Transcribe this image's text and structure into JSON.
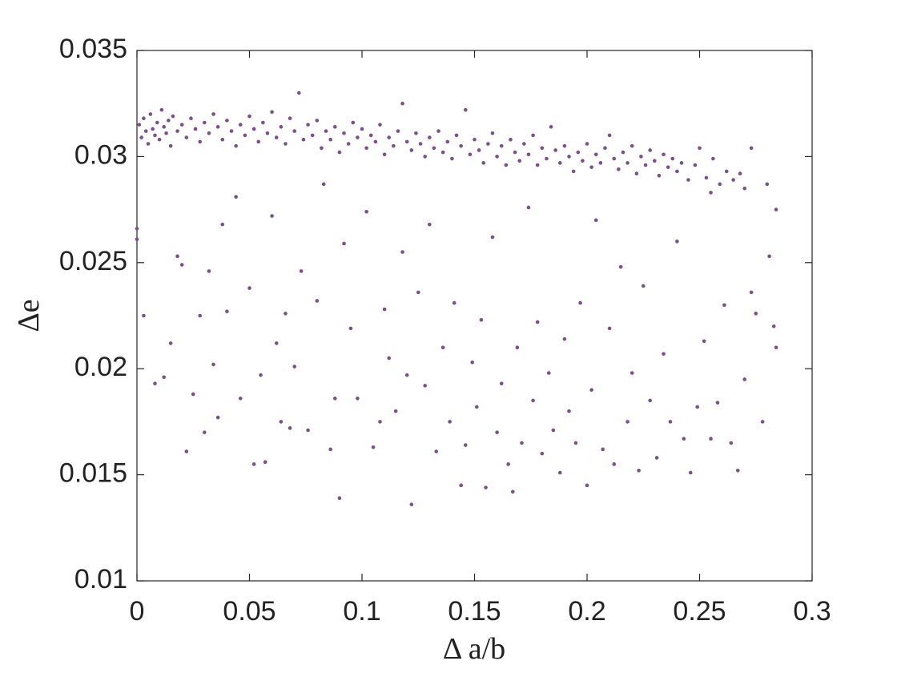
{
  "chart_data": {
    "type": "scatter",
    "xlabel": "Δ a/b",
    "ylabel": "Δe",
    "color": "#7e4e8c",
    "xlim": [
      0,
      0.3
    ],
    "ylim": [
      0.01,
      0.035
    ],
    "xticks": [
      0,
      0.05,
      0.1,
      0.15,
      0.2,
      0.25,
      0.3
    ],
    "yticks": [
      0.01,
      0.015,
      0.02,
      0.025,
      0.03,
      0.035
    ],
    "x": [
      0.001,
      0.002,
      0.003,
      0.004,
      0.005,
      0.006,
      0.007,
      0.008,
      0.009,
      0.01,
      0.011,
      0.012,
      0.013,
      0.014,
      0.015,
      0.016,
      0.018,
      0.02,
      0.022,
      0.024,
      0.026,
      0.028,
      0.03,
      0.032,
      0.034,
      0.036,
      0.038,
      0.04,
      0.042,
      0.044,
      0.046,
      0.048,
      0.05,
      0.052,
      0.054,
      0.056,
      0.058,
      0.06,
      0.062,
      0.064,
      0.066,
      0.068,
      0.07,
      0.072,
      0.074,
      0.076,
      0.078,
      0.08,
      0.082,
      0.084,
      0.086,
      0.088,
      0.09,
      0.092,
      0.094,
      0.096,
      0.098,
      0.1,
      0.102,
      0.104,
      0.106,
      0.108,
      0.11,
      0.112,
      0.114,
      0.116,
      0.118,
      0.12,
      0.122,
      0.124,
      0.126,
      0.128,
      0.13,
      0.132,
      0.134,
      0.136,
      0.138,
      0.14,
      0.142,
      0.144,
      0.146,
      0.148,
      0.15,
      0.152,
      0.154,
      0.156,
      0.158,
      0.16,
      0.162,
      0.164,
      0.166,
      0.168,
      0.17,
      0.172,
      0.174,
      0.176,
      0.178,
      0.18,
      0.182,
      0.184,
      0.186,
      0.188,
      0.19,
      0.192,
      0.194,
      0.196,
      0.198,
      0.2,
      0.202,
      0.204,
      0.206,
      0.208,
      0.21,
      0.212,
      0.214,
      0.216,
      0.218,
      0.22,
      0.222,
      0.224,
      0.226,
      0.228,
      0.23,
      0.232,
      0.234,
      0.236,
      0.238,
      0.24,
      0.242,
      0.245,
      0.248,
      0.25,
      0.253,
      0.256,
      0.259,
      0.262,
      0.265,
      0.268,
      0.27,
      0.273,
      0.255,
      0.28,
      0.0,
      0.0,
      0.003,
      0.008,
      0.012,
      0.015,
      0.018,
      0.02,
      0.022,
      0.025,
      0.028,
      0.03,
      0.032,
      0.034,
      0.036,
      0.038,
      0.04,
      0.044,
      0.046,
      0.05,
      0.052,
      0.055,
      0.057,
      0.06,
      0.062,
      0.064,
      0.066,
      0.068,
      0.07,
      0.073,
      0.076,
      0.08,
      0.083,
      0.086,
      0.088,
      0.09,
      0.092,
      0.095,
      0.098,
      0.102,
      0.105,
      0.108,
      0.11,
      0.112,
      0.115,
      0.118,
      0.12,
      0.122,
      0.125,
      0.128,
      0.13,
      0.133,
      0.136,
      0.139,
      0.141,
      0.144,
      0.146,
      0.149,
      0.151,
      0.153,
      0.155,
      0.158,
      0.16,
      0.162,
      0.165,
      0.167,
      0.169,
      0.171,
      0.174,
      0.176,
      0.178,
      0.18,
      0.183,
      0.185,
      0.188,
      0.19,
      0.192,
      0.195,
      0.197,
      0.2,
      0.202,
      0.204,
      0.207,
      0.21,
      0.212,
      0.215,
      0.218,
      0.22,
      0.223,
      0.225,
      0.228,
      0.231,
      0.234,
      0.237,
      0.24,
      0.243,
      0.246,
      0.249,
      0.252,
      0.255,
      0.258,
      0.261,
      0.264,
      0.267,
      0.27,
      0.273,
      0.275,
      0.278,
      0.281,
      0.283,
      0.284,
      0.284
    ],
    "values": [
      0.0315,
      0.0309,
      0.0318,
      0.0312,
      0.0306,
      0.032,
      0.0313,
      0.031,
      0.0316,
      0.0308,
      0.0322,
      0.0314,
      0.0311,
      0.0317,
      0.0305,
      0.0319,
      0.0312,
      0.0315,
      0.0309,
      0.0318,
      0.0313,
      0.0307,
      0.0316,
      0.0311,
      0.032,
      0.0314,
      0.0308,
      0.0317,
      0.0312,
      0.0305,
      0.0315,
      0.031,
      0.0319,
      0.0313,
      0.0307,
      0.0316,
      0.0311,
      0.0321,
      0.0309,
      0.0314,
      0.0306,
      0.0318,
      0.0312,
      0.033,
      0.0308,
      0.0315,
      0.031,
      0.0317,
      0.0304,
      0.0312,
      0.0308,
      0.0314,
      0.0302,
      0.0311,
      0.0306,
      0.0316,
      0.0309,
      0.0313,
      0.0304,
      0.031,
      0.0307,
      0.0315,
      0.0301,
      0.0309,
      0.0305,
      0.0312,
      0.0325,
      0.0307,
      0.0303,
      0.0311,
      0.0306,
      0.03,
      0.0309,
      0.0304,
      0.0312,
      0.0302,
      0.0307,
      0.0299,
      0.031,
      0.0305,
      0.0322,
      0.0301,
      0.0308,
      0.0303,
      0.0297,
      0.0306,
      0.0311,
      0.03,
      0.0305,
      0.0296,
      0.0308,
      0.0302,
      0.0298,
      0.0306,
      0.0301,
      0.031,
      0.0296,
      0.0304,
      0.0299,
      0.0314,
      0.0303,
      0.0297,
      0.0305,
      0.03,
      0.0293,
      0.0302,
      0.0298,
      0.0306,
      0.0295,
      0.0301,
      0.0297,
      0.0304,
      0.031,
      0.0299,
      0.0294,
      0.0302,
      0.0297,
      0.0305,
      0.0292,
      0.03,
      0.0296,
      0.0303,
      0.0298,
      0.0291,
      0.0301,
      0.0295,
      0.0299,
      0.0293,
      0.0297,
      0.0289,
      0.0296,
      0.0304,
      0.029,
      0.0299,
      0.0287,
      0.0293,
      0.0289,
      0.0292,
      0.0285,
      0.0304,
      0.0283,
      0.0287,
      0.0266,
      0.0261,
      0.0225,
      0.0193,
      0.0196,
      0.0212,
      0.0253,
      0.0249,
      0.0161,
      0.0188,
      0.0225,
      0.017,
      0.0246,
      0.0202,
      0.0177,
      0.0268,
      0.0227,
      0.0281,
      0.0186,
      0.0238,
      0.0155,
      0.0197,
      0.0156,
      0.0272,
      0.0212,
      0.0175,
      0.0226,
      0.0172,
      0.0201,
      0.0246,
      0.0171,
      0.0232,
      0.0287,
      0.0162,
      0.0186,
      0.0139,
      0.0259,
      0.0219,
      0.0186,
      0.0274,
      0.0163,
      0.0175,
      0.0228,
      0.0205,
      0.018,
      0.0255,
      0.0197,
      0.0136,
      0.0236,
      0.0192,
      0.0268,
      0.0161,
      0.021,
      0.0175,
      0.0231,
      0.0145,
      0.0164,
      0.0203,
      0.0182,
      0.0223,
      0.0144,
      0.0262,
      0.017,
      0.0193,
      0.0155,
      0.0142,
      0.021,
      0.0165,
      0.0276,
      0.0185,
      0.0222,
      0.016,
      0.0198,
      0.0171,
      0.0151,
      0.0214,
      0.018,
      0.0165,
      0.0231,
      0.0145,
      0.019,
      0.027,
      0.0162,
      0.0219,
      0.0155,
      0.0248,
      0.0175,
      0.0198,
      0.0152,
      0.0239,
      0.0185,
      0.0158,
      0.0207,
      0.0175,
      0.026,
      0.0167,
      0.0151,
      0.0182,
      0.0213,
      0.0167,
      0.0184,
      0.023,
      0.0165,
      0.0152,
      0.0195,
      0.0236,
      0.0226,
      0.0175,
      0.0253,
      0.022,
      0.0275,
      0.021
    ]
  }
}
